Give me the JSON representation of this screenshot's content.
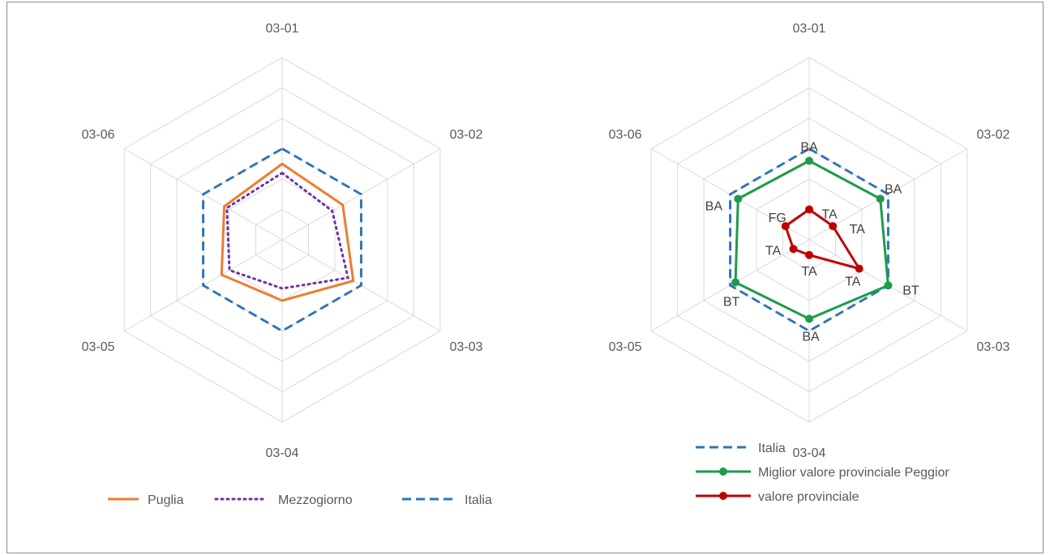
{
  "chart_data": [
    {
      "type": "radar",
      "title": "",
      "axes": [
        "03-01",
        "03-02",
        "03-03",
        "03-04",
        "03-05",
        "03-06"
      ],
      "rlim": [
        0,
        6
      ],
      "grid": true,
      "legend": "bottom",
      "series": [
        {
          "name": "Puglia",
          "color": "#ed7d31",
          "style": "solid",
          "marker": false,
          "values": [
            2.5,
            2.3,
            2.7,
            2.0,
            2.3,
            2.2
          ]
        },
        {
          "name": "Mezzogiorno",
          "color": "#7030a0",
          "style": "dotted",
          "marker": false,
          "values": [
            2.2,
            1.9,
            2.5,
            1.6,
            2.0,
            2.1
          ]
        },
        {
          "name": "Italia",
          "color": "#2e75b6",
          "style": "dashed",
          "marker": false,
          "values": [
            3.0,
            3.0,
            3.0,
            3.0,
            3.0,
            3.0
          ]
        }
      ]
    },
    {
      "type": "radar",
      "title": "",
      "axes": [
        "03-01",
        "03-02",
        "03-03",
        "03-04",
        "03-05",
        "03-06"
      ],
      "rlim": [
        0,
        6
      ],
      "grid": true,
      "legend": "bottom-left",
      "series": [
        {
          "name": "Italia",
          "color": "#2e75b6",
          "style": "dashed",
          "marker": false,
          "values": [
            3.0,
            3.0,
            3.0,
            3.0,
            3.0,
            3.0
          ],
          "labels": []
        },
        {
          "name": "Miglior valore provinciale Peggior",
          "color": "#1e9b4b",
          "style": "solid",
          "marker": true,
          "values": [
            2.6,
            2.7,
            3.0,
            2.6,
            2.8,
            2.7
          ],
          "labels": [
            "BA",
            "BA",
            "BT",
            "BA",
            "BT",
            "BA"
          ]
        },
        {
          "name": "valore provinciale",
          "color": "#c00000",
          "style": "solid",
          "marker": true,
          "values": [
            1.0,
            0.9,
            1.9,
            0.5,
            0.6,
            0.9
          ],
          "labels": [
            "TA",
            "TA",
            "TA",
            "TA",
            "TA",
            "FG"
          ]
        }
      ]
    }
  ]
}
